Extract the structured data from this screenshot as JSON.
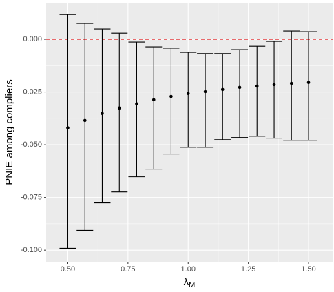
{
  "chart_data": {
    "type": "errorbar",
    "x_label": "λ",
    "x_label_subscript": "M",
    "y_label": "PNIE among compliers",
    "x": [
      0.5,
      0.571,
      0.643,
      0.714,
      0.786,
      0.857,
      0.929,
      1.0,
      1.071,
      1.143,
      1.214,
      1.286,
      1.357,
      1.429,
      1.5
    ],
    "series": [
      {
        "color": "#000000",
        "values": [
          -0.042,
          -0.0385,
          -0.0352,
          -0.0326,
          -0.0306,
          -0.0287,
          -0.0271,
          -0.0257,
          -0.0248,
          -0.0238,
          -0.0228,
          -0.0222,
          -0.0215,
          -0.0209,
          -0.0205
        ],
        "lower": [
          -0.0991,
          -0.0906,
          -0.0776,
          -0.0724,
          -0.0652,
          -0.0616,
          -0.0544,
          -0.0512,
          -0.0512,
          -0.0476,
          -0.0466,
          -0.046,
          -0.0469,
          -0.0479,
          -0.0479
        ],
        "upper": [
          0.0117,
          0.0075,
          0.0049,
          0.0029,
          -0.0013,
          -0.0036,
          -0.0042,
          -0.0062,
          -0.0068,
          -0.0068,
          -0.0049,
          -0.0033,
          -0.001,
          0.0039,
          0.0036
        ]
      }
    ],
    "xlim": [
      0.41,
      1.6
    ],
    "ylim": [
      -0.1055,
      0.017
    ],
    "xticks": [
      {
        "value": 0.5,
        "label": "0.50"
      },
      {
        "value": 0.75,
        "label": "0.75"
      },
      {
        "value": 1.0,
        "label": "1.00"
      },
      {
        "value": 1.25,
        "label": "1.25"
      },
      {
        "value": 1.5,
        "label": "1.50"
      }
    ],
    "yticks": [
      {
        "value": -0.1,
        "label": "-0.100"
      },
      {
        "value": -0.075,
        "label": "-0.075"
      },
      {
        "value": -0.05,
        "label": "-0.050"
      },
      {
        "value": -0.025,
        "label": "-0.025"
      },
      {
        "value": 0,
        "label": "0.000"
      }
    ],
    "hline": 0,
    "hline_color": "#e41a1c",
    "grid": true
  }
}
